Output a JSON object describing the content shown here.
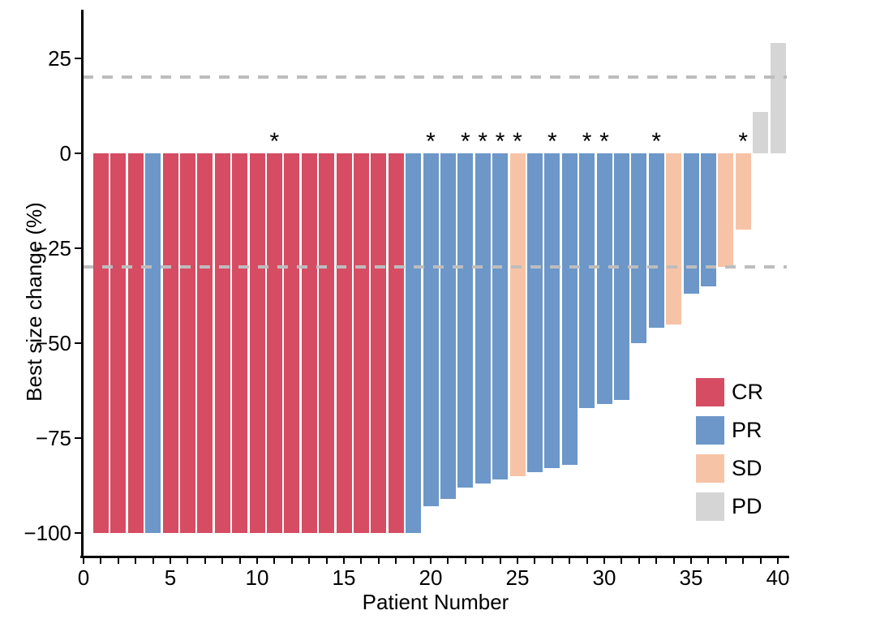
{
  "chart_data": {
    "type": "bar",
    "subtype": "waterfall",
    "title": "",
    "xlabel": "Patient Number",
    "ylabel": "Best size change (%)",
    "x_axis": {
      "min": 0,
      "max": 40,
      "major_tick_values": [
        0,
        5,
        10,
        15,
        20,
        25,
        30,
        35,
        40
      ],
      "major_tick_labels": [
        "0",
        "5",
        "10",
        "15",
        "20",
        "25",
        "30",
        "35",
        "40"
      ],
      "minor_tick_step": 1
    },
    "y_axis": {
      "tick_values": [
        25,
        0,
        -25,
        -50,
        -75,
        -100
      ],
      "tick_labels": [
        "25",
        "0",
        "−25",
        "−50",
        "−75",
        "−100"
      ],
      "range": [
        -105,
        37
      ]
    },
    "grid": "off",
    "reference_lines": [
      {
        "y": 20,
        "style": "dashed",
        "color": "#BDBDBD"
      },
      {
        "y": -30,
        "style": "dashed",
        "color": "#BDBDBD"
      }
    ],
    "legend": {
      "position": "inside-right",
      "entries": [
        {
          "label": "CR",
          "color": "#D64C63"
        },
        {
          "label": "PR",
          "color": "#6C97C8"
        },
        {
          "label": "SD",
          "color": "#F7C3A7"
        },
        {
          "label": "PD",
          "color": "#D5D5D5"
        }
      ]
    },
    "annotation_symbol": "*",
    "patients": [
      {
        "patient": 1,
        "value": -100,
        "response": "CR",
        "asterisk": false
      },
      {
        "patient": 2,
        "value": -100,
        "response": "CR",
        "asterisk": false
      },
      {
        "patient": 3,
        "value": -100,
        "response": "CR",
        "asterisk": false
      },
      {
        "patient": 4,
        "value": -100,
        "response": "PR",
        "asterisk": false
      },
      {
        "patient": 5,
        "value": -100,
        "response": "CR",
        "asterisk": false
      },
      {
        "patient": 6,
        "value": -100,
        "response": "CR",
        "asterisk": false
      },
      {
        "patient": 7,
        "value": -100,
        "response": "CR",
        "asterisk": false
      },
      {
        "patient": 8,
        "value": -100,
        "response": "CR",
        "asterisk": false
      },
      {
        "patient": 9,
        "value": -100,
        "response": "CR",
        "asterisk": false
      },
      {
        "patient": 10,
        "value": -100,
        "response": "CR",
        "asterisk": false
      },
      {
        "patient": 11,
        "value": -100,
        "response": "CR",
        "asterisk": true
      },
      {
        "patient": 12,
        "value": -100,
        "response": "CR",
        "asterisk": false
      },
      {
        "patient": 13,
        "value": -100,
        "response": "CR",
        "asterisk": false
      },
      {
        "patient": 14,
        "value": -100,
        "response": "CR",
        "asterisk": false
      },
      {
        "patient": 15,
        "value": -100,
        "response": "CR",
        "asterisk": false
      },
      {
        "patient": 16,
        "value": -100,
        "response": "CR",
        "asterisk": false
      },
      {
        "patient": 17,
        "value": -100,
        "response": "CR",
        "asterisk": false
      },
      {
        "patient": 18,
        "value": -100,
        "response": "CR",
        "asterisk": false
      },
      {
        "patient": 19,
        "value": -100,
        "response": "PR",
        "asterisk": false
      },
      {
        "patient": 20,
        "value": -93,
        "response": "PR",
        "asterisk": true
      },
      {
        "patient": 21,
        "value": -91,
        "response": "PR",
        "asterisk": false
      },
      {
        "patient": 22,
        "value": -88,
        "response": "PR",
        "asterisk": true
      },
      {
        "patient": 23,
        "value": -87,
        "response": "PR",
        "asterisk": true
      },
      {
        "patient": 24,
        "value": -86,
        "response": "PR",
        "asterisk": true
      },
      {
        "patient": 25,
        "value": -85,
        "response": "SD",
        "asterisk": true
      },
      {
        "patient": 26,
        "value": -84,
        "response": "PR",
        "asterisk": false
      },
      {
        "patient": 27,
        "value": -83,
        "response": "PR",
        "asterisk": true
      },
      {
        "patient": 28,
        "value": -82,
        "response": "PR",
        "asterisk": false
      },
      {
        "patient": 29,
        "value": -67,
        "response": "PR",
        "asterisk": true
      },
      {
        "patient": 30,
        "value": -66,
        "response": "PR",
        "asterisk": true
      },
      {
        "patient": 31,
        "value": -65,
        "response": "PR",
        "asterisk": false
      },
      {
        "patient": 32,
        "value": -50,
        "response": "PR",
        "asterisk": false
      },
      {
        "patient": 33,
        "value": -46,
        "response": "PR",
        "asterisk": true
      },
      {
        "patient": 34,
        "value": -45,
        "response": "SD",
        "asterisk": false
      },
      {
        "patient": 35,
        "value": -37,
        "response": "PR",
        "asterisk": false
      },
      {
        "patient": 36,
        "value": -35,
        "response": "PR",
        "asterisk": false
      },
      {
        "patient": 37,
        "value": -30,
        "response": "SD",
        "asterisk": false
      },
      {
        "patient": 38,
        "value": -20,
        "response": "SD",
        "asterisk": true
      },
      {
        "patient": 39,
        "value": 11,
        "response": "PD",
        "asterisk": false
      },
      {
        "patient": 40,
        "value": 29,
        "response": "PD",
        "asterisk": false
      }
    ]
  },
  "colors": {
    "background": "#FFFFFF",
    "axis": "#000000",
    "text": "#000000",
    "reference_line": "#BDBDBD",
    "CR": "#D64C63",
    "PR": "#6C97C8",
    "SD": "#F7C3A7",
    "PD": "#D5D5D5"
  }
}
